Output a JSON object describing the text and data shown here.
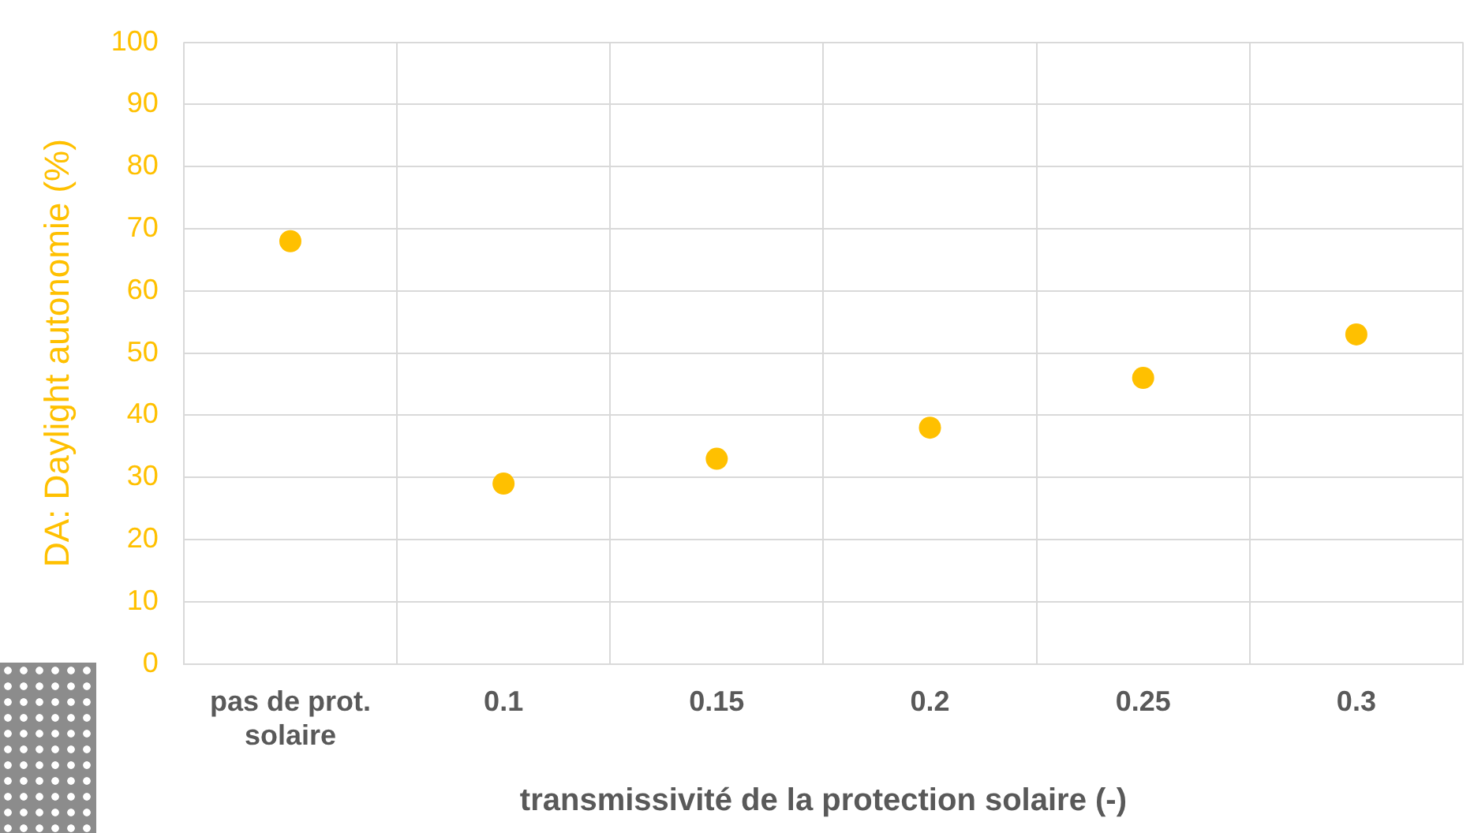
{
  "chart_data": {
    "type": "scatter",
    "xlabel": "transmissivité de la protection solaire (-)",
    "ylabel": "DA: Daylight autonomie (%)",
    "categories": [
      [
        "pas de prot.",
        "solaire"
      ],
      "0.1",
      "0.15",
      "0.2",
      "0.25",
      "0.3"
    ],
    "values": [
      68,
      29,
      33,
      38,
      46,
      53
    ],
    "color": "#ffc000",
    "ylim": [
      0,
      100
    ],
    "yticks": [
      0,
      10,
      20,
      30,
      40,
      50,
      60,
      70,
      80,
      90,
      100
    ],
    "grid": true,
    "legend": false,
    "marker": "circle"
  }
}
